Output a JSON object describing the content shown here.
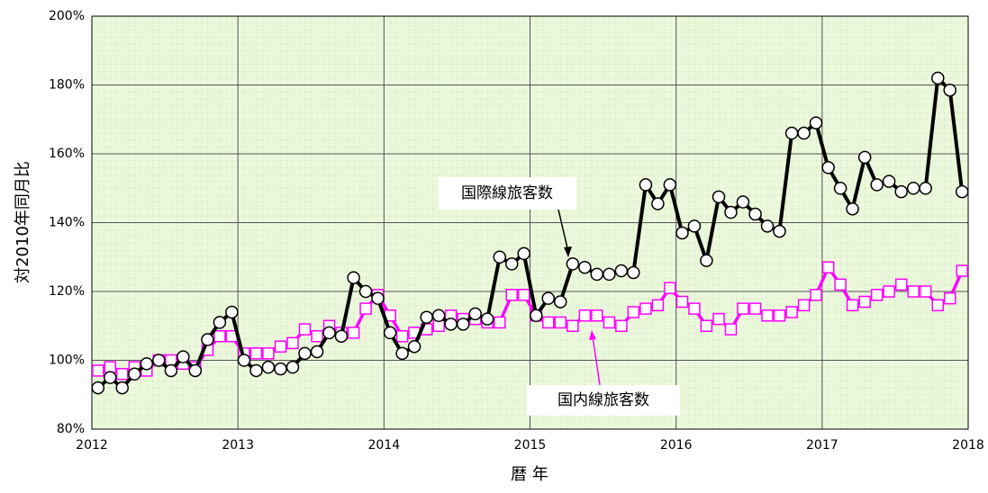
{
  "chart_data": {
    "type": "line",
    "y_label": "対2010年同月比",
    "x_label": "暦 年",
    "annotations": [
      "国際線旅客数",
      "国内線旅客数"
    ],
    "xlim": [
      2012,
      2018
    ],
    "xticks": [
      2012,
      2013,
      2014,
      2015,
      2016,
      2017,
      2018
    ],
    "ylim": [
      80,
      200
    ],
    "yticks": [
      {
        "value": 80,
        "label": "80%"
      },
      {
        "value": 100,
        "label": "100%"
      },
      {
        "value": 120,
        "label": "120%"
      },
      {
        "value": 140,
        "label": "140%"
      },
      {
        "value": 160,
        "label": "160%"
      },
      {
        "value": 180,
        "label": "180%"
      },
      {
        "value": 200,
        "label": "200%"
      }
    ],
    "grid": true,
    "x": [
      2012.042,
      2012.125,
      2012.208,
      2012.292,
      2012.375,
      2012.458,
      2012.542,
      2012.625,
      2012.708,
      2012.792,
      2012.875,
      2012.958,
      2013.042,
      2013.125,
      2013.208,
      2013.292,
      2013.375,
      2013.458,
      2013.542,
      2013.625,
      2013.708,
      2013.792,
      2013.875,
      2013.958,
      2014.042,
      2014.125,
      2014.208,
      2014.292,
      2014.375,
      2014.458,
      2014.542,
      2014.625,
      2014.708,
      2014.792,
      2014.875,
      2014.958,
      2015.042,
      2015.125,
      2015.208,
      2015.292,
      2015.375,
      2015.458,
      2015.542,
      2015.625,
      2015.708,
      2015.792,
      2015.875,
      2015.958,
      2016.042,
      2016.125,
      2016.208,
      2016.292,
      2016.375,
      2016.458,
      2016.542,
      2016.625,
      2016.708,
      2016.792,
      2016.875,
      2016.958,
      2017.042,
      2017.125,
      2017.208,
      2017.292,
      2017.375,
      2017.458,
      2017.542,
      2017.625,
      2017.708,
      2017.792,
      2017.875,
      2017.958
    ],
    "series": [
      {
        "name": "国際線旅客数",
        "color": "#000000",
        "marker": "circle",
        "values": [
          92,
          95,
          92,
          96,
          99,
          100,
          97,
          101,
          97,
          106,
          111,
          114,
          100,
          97,
          98,
          97.5,
          98,
          102,
          102.5,
          108,
          107,
          124,
          120,
          118,
          108,
          102,
          104,
          112.5,
          113,
          110.5,
          110.5,
          113.5,
          112,
          130,
          128,
          131,
          113,
          118,
          117,
          128,
          127,
          125,
          125,
          126,
          125.5,
          151,
          145.5,
          151,
          137,
          139,
          129,
          147.5,
          143,
          146,
          142.5,
          139,
          137.5,
          166,
          166,
          169,
          156,
          150,
          144,
          159,
          151,
          152,
          149,
          150,
          150,
          182,
          178.5,
          149
        ]
      },
      {
        "name": "国内線旅客数",
        "color": "#ff00ff",
        "marker": "square",
        "values": [
          97,
          98,
          96,
          98,
          97,
          100,
          100,
          99,
          98,
          103,
          107,
          107,
          102,
          102,
          102,
          104,
          105,
          109,
          107,
          110,
          108,
          108,
          115,
          119,
          113,
          107,
          108,
          109,
          110,
          113,
          112,
          112,
          111,
          111,
          119,
          119,
          113,
          111,
          111,
          110,
          113,
          113,
          111,
          110,
          114,
          115,
          116,
          121,
          117,
          115,
          110,
          112,
          109,
          115,
          115,
          113,
          113,
          114,
          116,
          119,
          127,
          122,
          116,
          117,
          119,
          120,
          122,
          120,
          120,
          116,
          118,
          126
        ]
      }
    ]
  }
}
